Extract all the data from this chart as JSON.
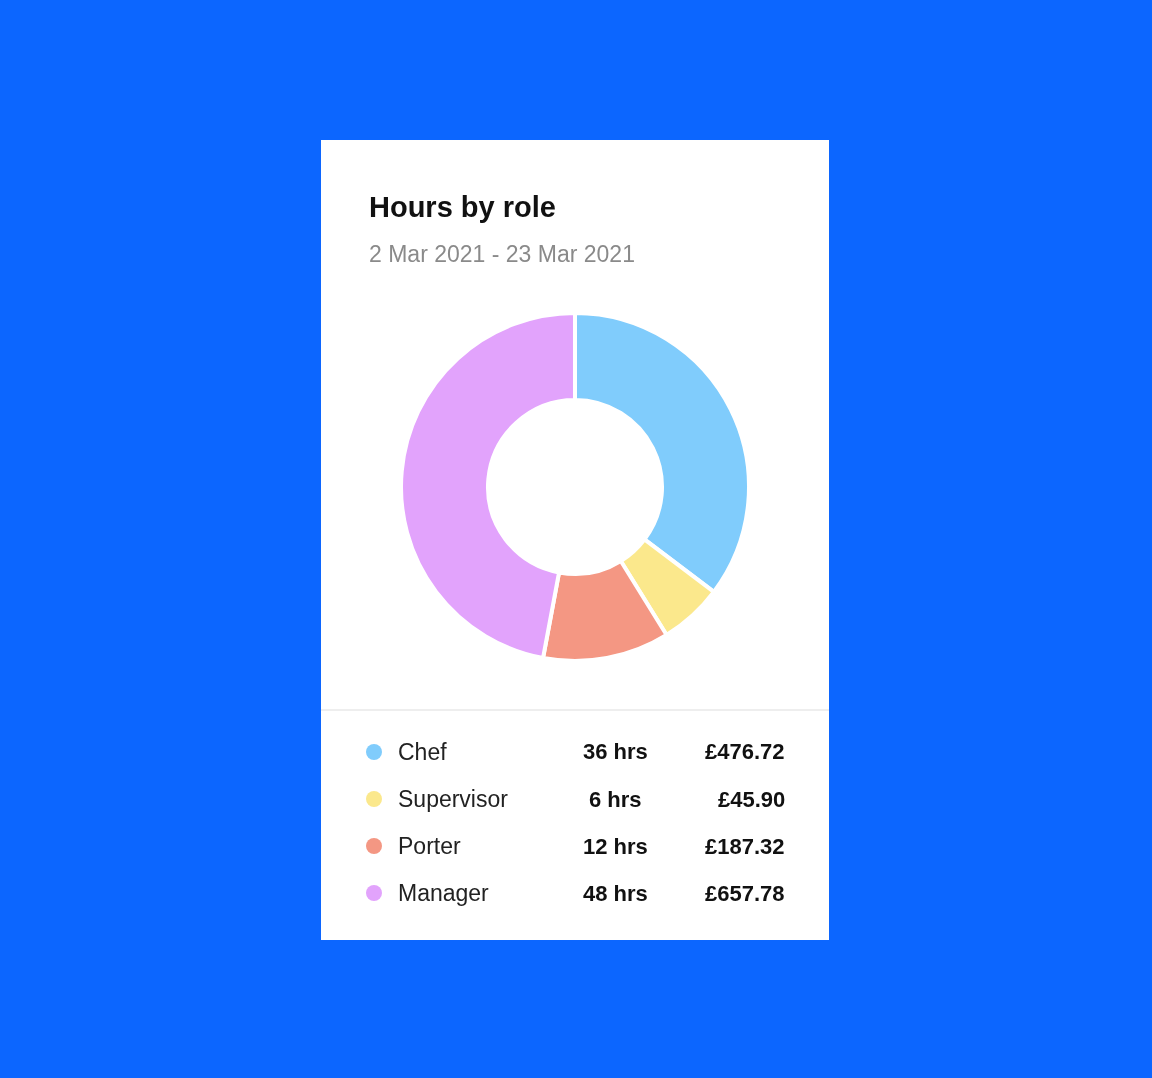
{
  "chart_data": {
    "type": "donut",
    "title": "Hours by role",
    "subtitle": "2 Mar 2021 - 23 Mar 2021",
    "categories": [
      "Chef",
      "Supervisor",
      "Porter",
      "Manager"
    ],
    "values": [
      36,
      6,
      12,
      48
    ],
    "colors": [
      "#80ccfc",
      "#fbe88c",
      "#f49783",
      "#e2a3fc"
    ],
    "value_labels": [
      "36 hrs",
      "6 hrs",
      "12 hrs",
      "48 hrs"
    ],
    "annotations": [
      "£476.72",
      "£45.90",
      "£187.32",
      "£657.78"
    ],
    "legend": "bottom"
  }
}
